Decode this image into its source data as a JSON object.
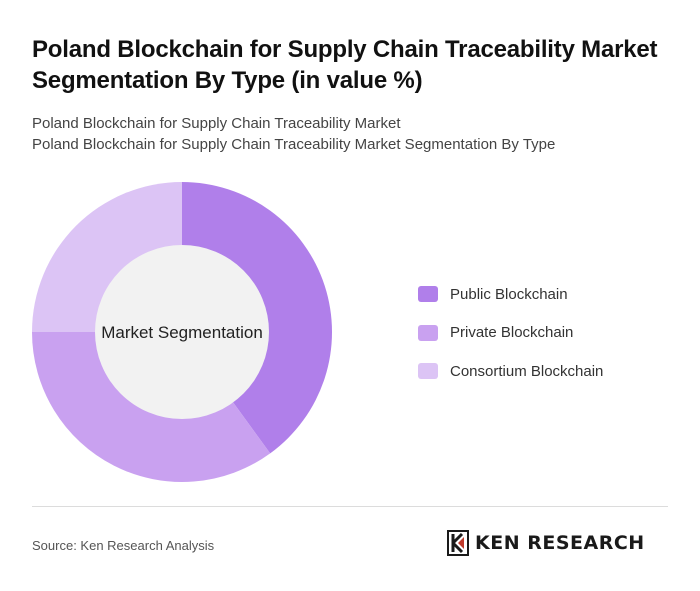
{
  "header": {
    "title": "Poland Blockchain for Supply Chain Traceability Market Segmentation By Type (in value %)",
    "subtitle_line1": "Poland Blockchain for Supply Chain Traceability Market",
    "subtitle_line2": "Poland Blockchain for Supply Chain Traceability Market Segmentation By Type"
  },
  "chart_data": {
    "type": "pie",
    "variant": "donut",
    "center_label": "Market Segmentation",
    "categories": [
      "Public Blockchain",
      "Private Blockchain",
      "Consortium Blockchain"
    ],
    "values": [
      40,
      35,
      25
    ],
    "colors": [
      "#b07fea",
      "#c9a1f0",
      "#dcc4f5"
    ],
    "legend_position": "right"
  },
  "footer": {
    "source": "Source: Ken Research Analysis",
    "logo_text": "KEN RESEARCH"
  }
}
